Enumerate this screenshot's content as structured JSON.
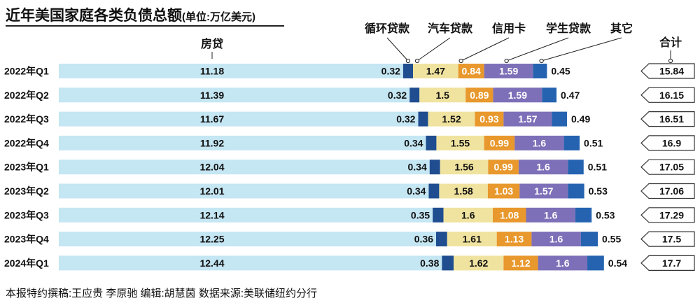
{
  "title": {
    "main": "近年美国家庭各类负债总额",
    "unit": "(单位:万亿美元)"
  },
  "footer": {
    "text": "本报特约撰稿:王应贵 李原驰  编辑:胡慧茵   数据来源:美联储纽约分行"
  },
  "colors": {
    "mortgage": "#c5e6f3",
    "revolving": "#1f4d8f",
    "auto": "#f0e3a0",
    "credit_card": "#e8982c",
    "student": "#7e70b8",
    "other": "#2563b0",
    "total_arrow_bg": "#ffffff",
    "total_arrow_border": "#333333"
  },
  "chart_data": {
    "type": "bar",
    "stacked": true,
    "orientation": "horizontal",
    "title": "近年美国家庭各类负债总额",
    "unit": "万亿美元",
    "categories": [
      "2022年Q1",
      "2022年Q2",
      "2022年Q3",
      "2022年Q4",
      "2023年Q1",
      "2023年Q2",
      "2023年Q3",
      "2023年Q4",
      "2024年Q1"
    ],
    "series": [
      {
        "key": "mortgage",
        "name": "房贷",
        "values": [
          11.18,
          11.39,
          11.67,
          11.92,
          12.04,
          12.01,
          12.14,
          12.25,
          12.44
        ]
      },
      {
        "key": "revolving",
        "name": "循环贷款",
        "values": [
          0.32,
          0.32,
          0.32,
          0.34,
          0.34,
          0.34,
          0.35,
          0.36,
          0.38
        ]
      },
      {
        "key": "auto",
        "name": "汽车贷款",
        "values": [
          1.47,
          1.5,
          1.52,
          1.55,
          1.56,
          1.58,
          1.6,
          1.61,
          1.62
        ]
      },
      {
        "key": "credit_card",
        "name": "信用卡",
        "values": [
          0.84,
          0.89,
          0.93,
          0.99,
          0.99,
          1.03,
          1.08,
          1.13,
          1.12
        ]
      },
      {
        "key": "student",
        "name": "学生贷款",
        "values": [
          1.59,
          1.59,
          1.57,
          1.6,
          1.6,
          1.57,
          1.6,
          1.6,
          1.6
        ]
      },
      {
        "key": "other",
        "name": "其它",
        "values": [
          0.45,
          0.47,
          0.49,
          0.51,
          0.51,
          0.53,
          0.53,
          0.55,
          0.54
        ]
      }
    ],
    "total_label": "合计",
    "totals": [
      15.84,
      16.15,
      16.51,
      16.9,
      17.05,
      17.06,
      17.29,
      17.5,
      17.7
    ],
    "legend": "top, with leader lines",
    "grid": false
  }
}
